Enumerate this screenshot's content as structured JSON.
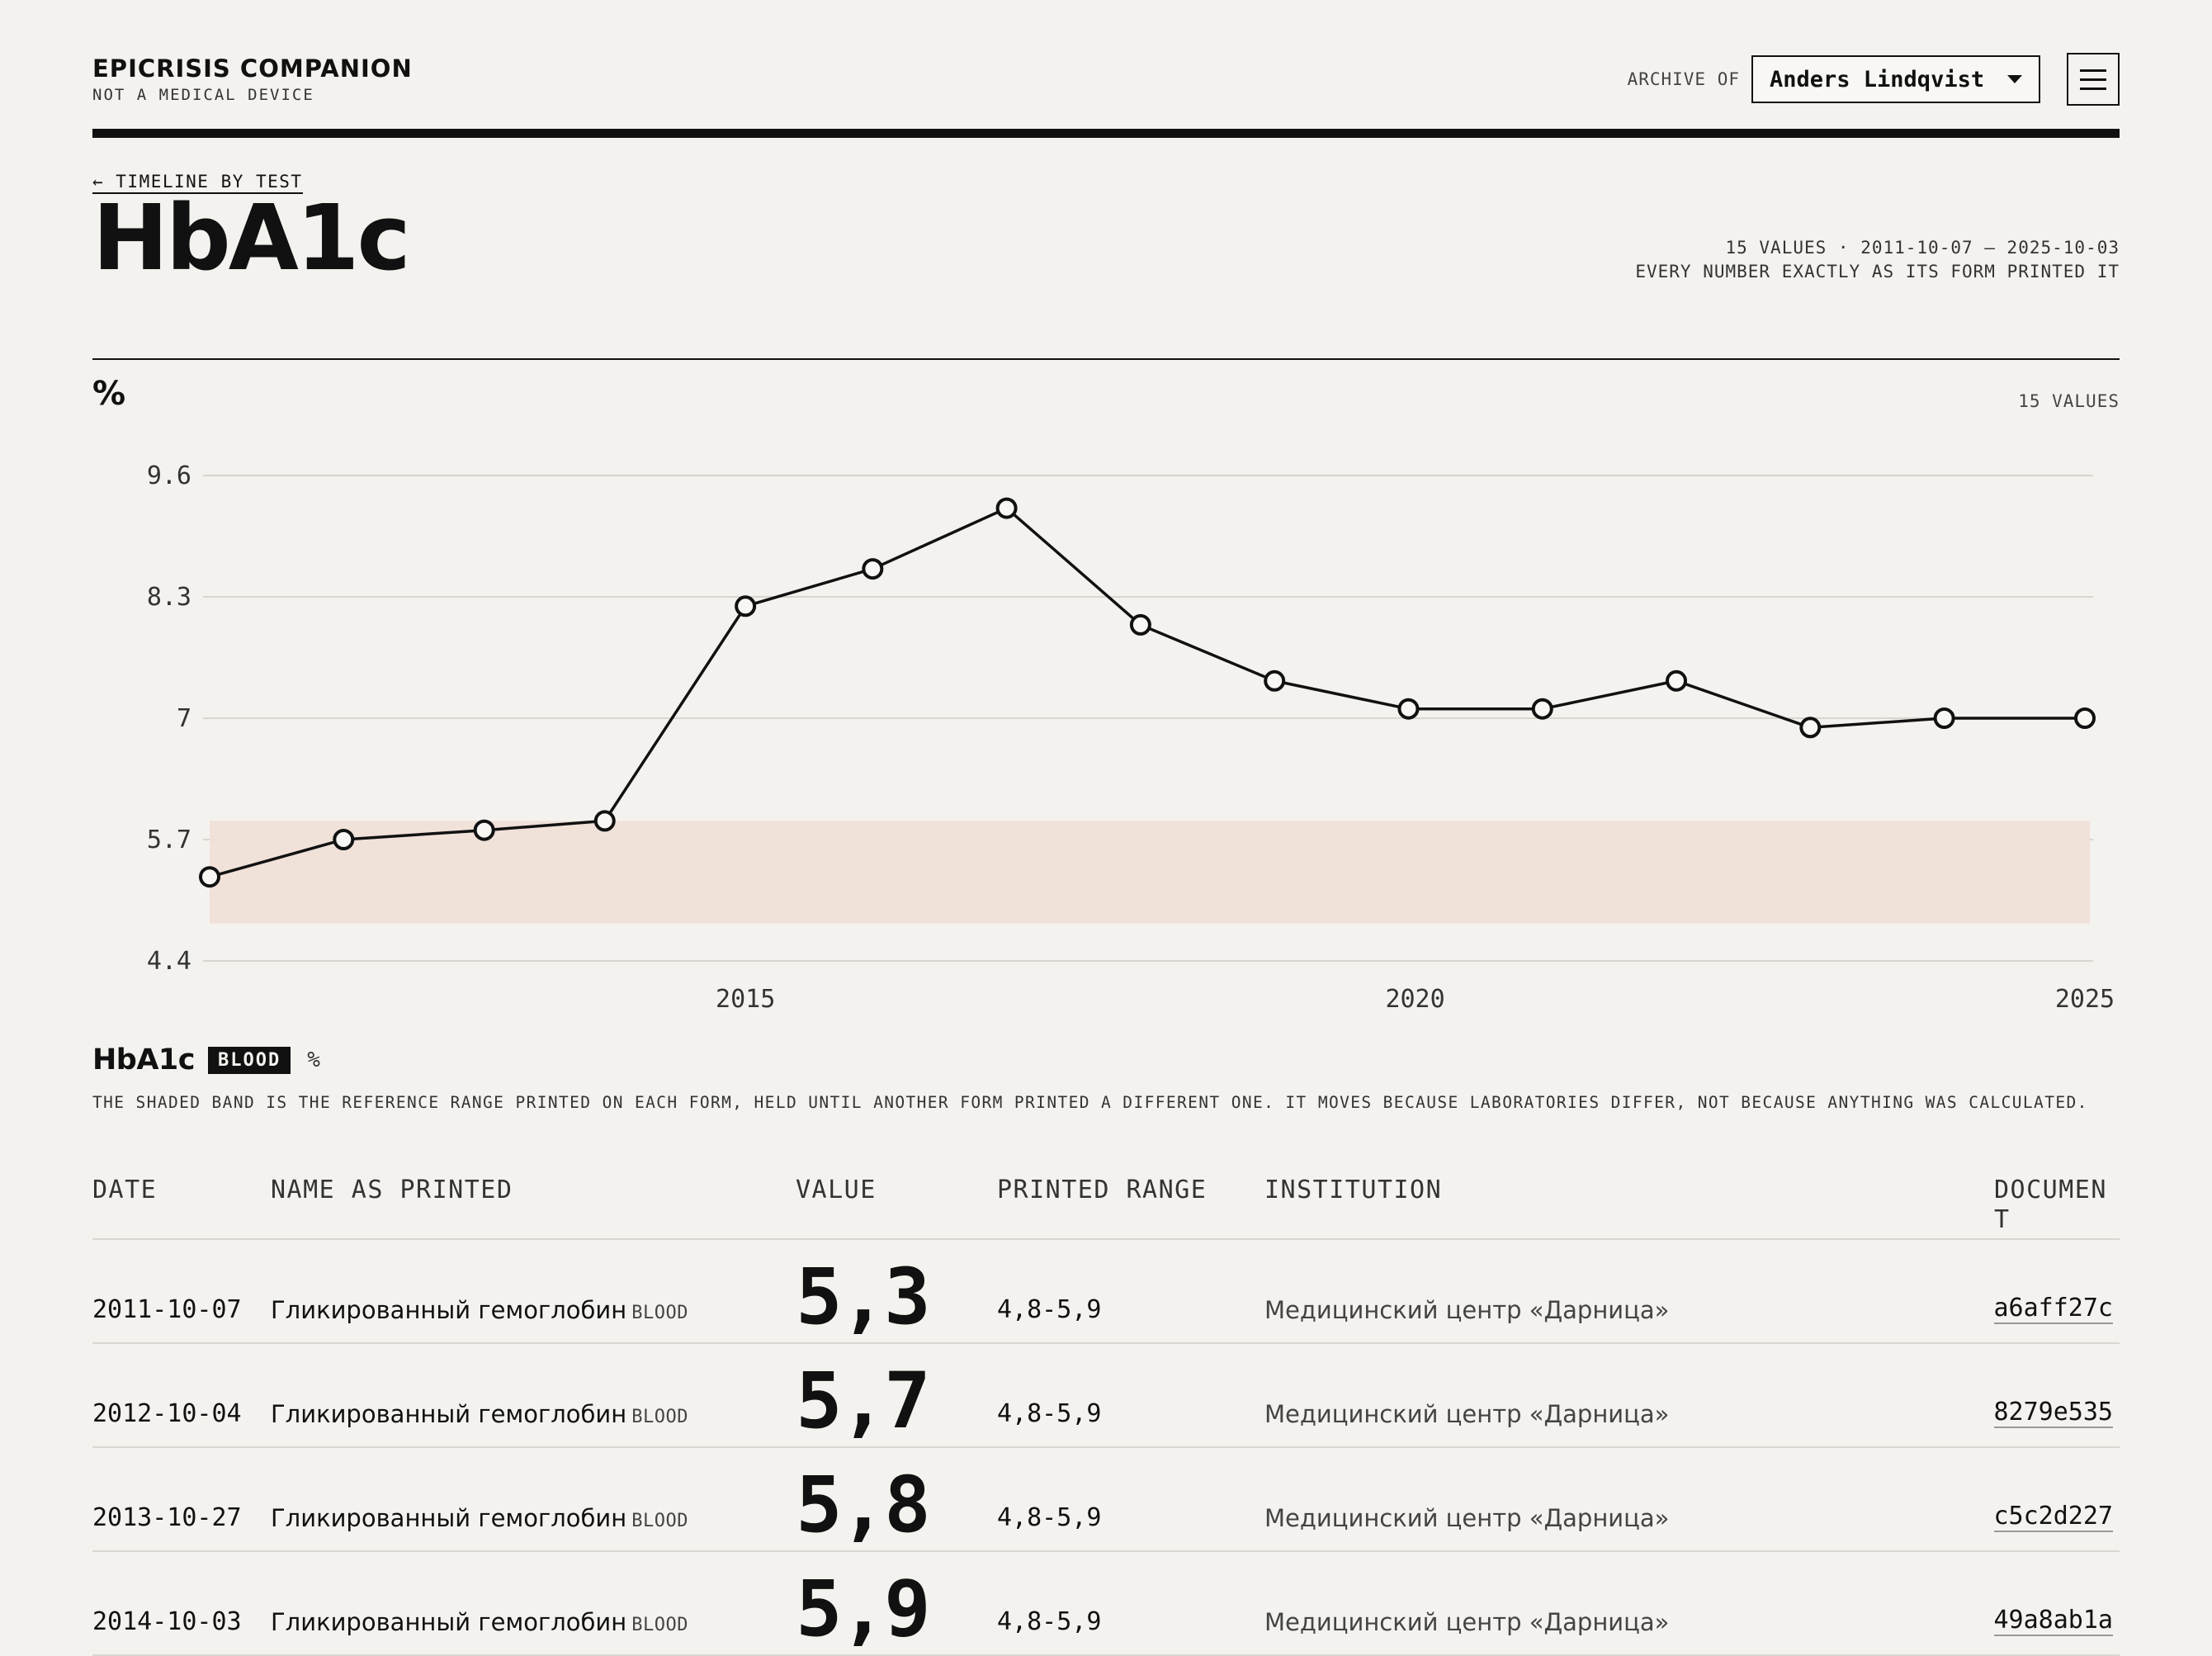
{
  "header": {
    "brand_title": "EPICRISIS COMPANION",
    "brand_subtitle": "NOT A MEDICAL DEVICE",
    "archive_label": "ARCHIVE OF",
    "patient_selected": "Anders Lindqvist",
    "menu_icon": "hamburger-icon"
  },
  "page": {
    "back_link": "← TIMELINE BY TEST",
    "title": "HbA1c",
    "meta_line1": "15 VALUES · 2011-10-07 – 2025-10-03",
    "meta_line2": "EVERY NUMBER EXACTLY AS ITS FORM PRINTED IT",
    "unit": "%",
    "values_count": "15 VALUES"
  },
  "chart_data": {
    "type": "line",
    "title": "",
    "xlabel": "",
    "ylabel": "%",
    "ylim": [
      4.4,
      9.6
    ],
    "yticks": [
      "9.6",
      "8.3",
      "7",
      "5.7",
      "4.4"
    ],
    "yticks_values": [
      9.6,
      8.3,
      7.0,
      5.7,
      4.4
    ],
    "xticks": [
      "2015",
      "2020",
      "2025"
    ],
    "xticks_values": [
      2015,
      2020,
      2025
    ],
    "xlim": [
      2011.0,
      2025.0
    ],
    "grid": true,
    "reference_band": [
      4.8,
      5.9
    ],
    "series": [
      {
        "x": [
          2011.0,
          2012.0,
          2013.05,
          2013.95,
          2015.0,
          2015.95,
          2016.95,
          2017.95,
          2018.95,
          2019.95,
          2020.95,
          2021.95,
          2022.95,
          2023.95,
          2025.0
        ],
        "values": [
          5.3,
          5.7,
          5.8,
          5.9,
          8.2,
          8.6,
          9.25,
          8.0,
          7.4,
          7.1,
          7.1,
          7.4,
          6.9,
          7.0,
          7.0
        ]
      }
    ],
    "colors": {
      "line": "#111111",
      "band": "#efdfd7",
      "grid": "#d9d5cf",
      "marker_fill": "#f8f7f4"
    }
  },
  "legend": {
    "name": "HbA1c",
    "badge": "BLOOD",
    "unit": "%",
    "note": "THE SHADED BAND IS THE REFERENCE RANGE PRINTED ON EACH FORM, HELD UNTIL ANOTHER FORM PRINTED A DIFFERENT ONE. IT MOVES BECAUSE LABORATORIES DIFFER, NOT BECAUSE ANYTHING WAS CALCULATED."
  },
  "table": {
    "headers": {
      "date": "DATE",
      "name": "NAME AS PRINTED",
      "value": "VALUE",
      "range": "PRINTED RANGE",
      "institution": "INSTITUTION",
      "document": "DOCUMEN T"
    },
    "rows": [
      {
        "date": "2011-10-07",
        "name": "Гликированный гемоглобин",
        "tag": "BLOOD",
        "value": "5,3",
        "range": "4,8-5,9",
        "institution": "Медицинский центр «Дарница»",
        "document": "a6aff27c"
      },
      {
        "date": "2012-10-04",
        "name": "Гликированный гемоглобин",
        "tag": "BLOOD",
        "value": "5,7",
        "range": "4,8-5,9",
        "institution": "Медицинский центр «Дарница»",
        "document": "8279e535"
      },
      {
        "date": "2013-10-27",
        "name": "Гликированный гемоглобин",
        "tag": "BLOOD",
        "value": "5,8",
        "range": "4,8-5,9",
        "institution": "Медицинский центр «Дарница»",
        "document": "c5c2d227"
      },
      {
        "date": "2014-10-03",
        "name": "Гликированный гемоглобин",
        "tag": "BLOOD",
        "value": "5,9",
        "range": "4,8-5,9",
        "institution": "Медицинский центр «Дарница»",
        "document": "49a8ab1a"
      }
    ]
  }
}
